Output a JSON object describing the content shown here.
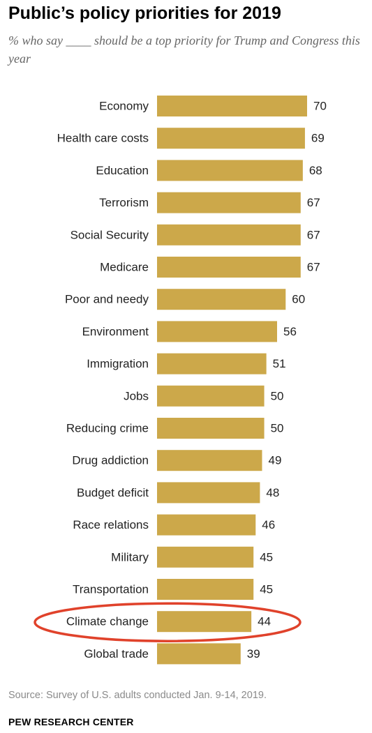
{
  "chart_data": {
    "type": "bar",
    "orientation": "horizontal",
    "title": "Public’s policy priorities for 2019",
    "subtitle": "% who say ____ should be a top priority for Trump and Congress this year",
    "categories": [
      "Economy",
      "Health care costs",
      "Education",
      "Terrorism",
      "Social Security",
      "Medicare",
      "Poor and needy",
      "Environment",
      "Immigration",
      "Jobs",
      "Reducing crime",
      "Drug addiction",
      "Budget deficit",
      "Race relations",
      "Military",
      "Transportation",
      "Climate change",
      "Global trade"
    ],
    "values": [
      70,
      69,
      68,
      67,
      67,
      67,
      60,
      56,
      51,
      50,
      50,
      49,
      48,
      46,
      45,
      45,
      44,
      39
    ],
    "value_labels": [
      "70",
      "69",
      "68",
      "67",
      "67",
      "67",
      "60",
      "56",
      "51",
      "50",
      "50",
      "49",
      "48",
      "46",
      "45",
      "45",
      "44",
      "39"
    ],
    "xlim": [
      0,
      70
    ],
    "grid": false,
    "bar_color": "#cca84a",
    "highlight": {
      "category": "Climate change",
      "color": "#e0422b"
    }
  },
  "footer": {
    "source": "Source: Survey of U.S. adults conducted Jan. 9-14, 2019.",
    "brand": "PEW RESEARCH CENTER"
  }
}
